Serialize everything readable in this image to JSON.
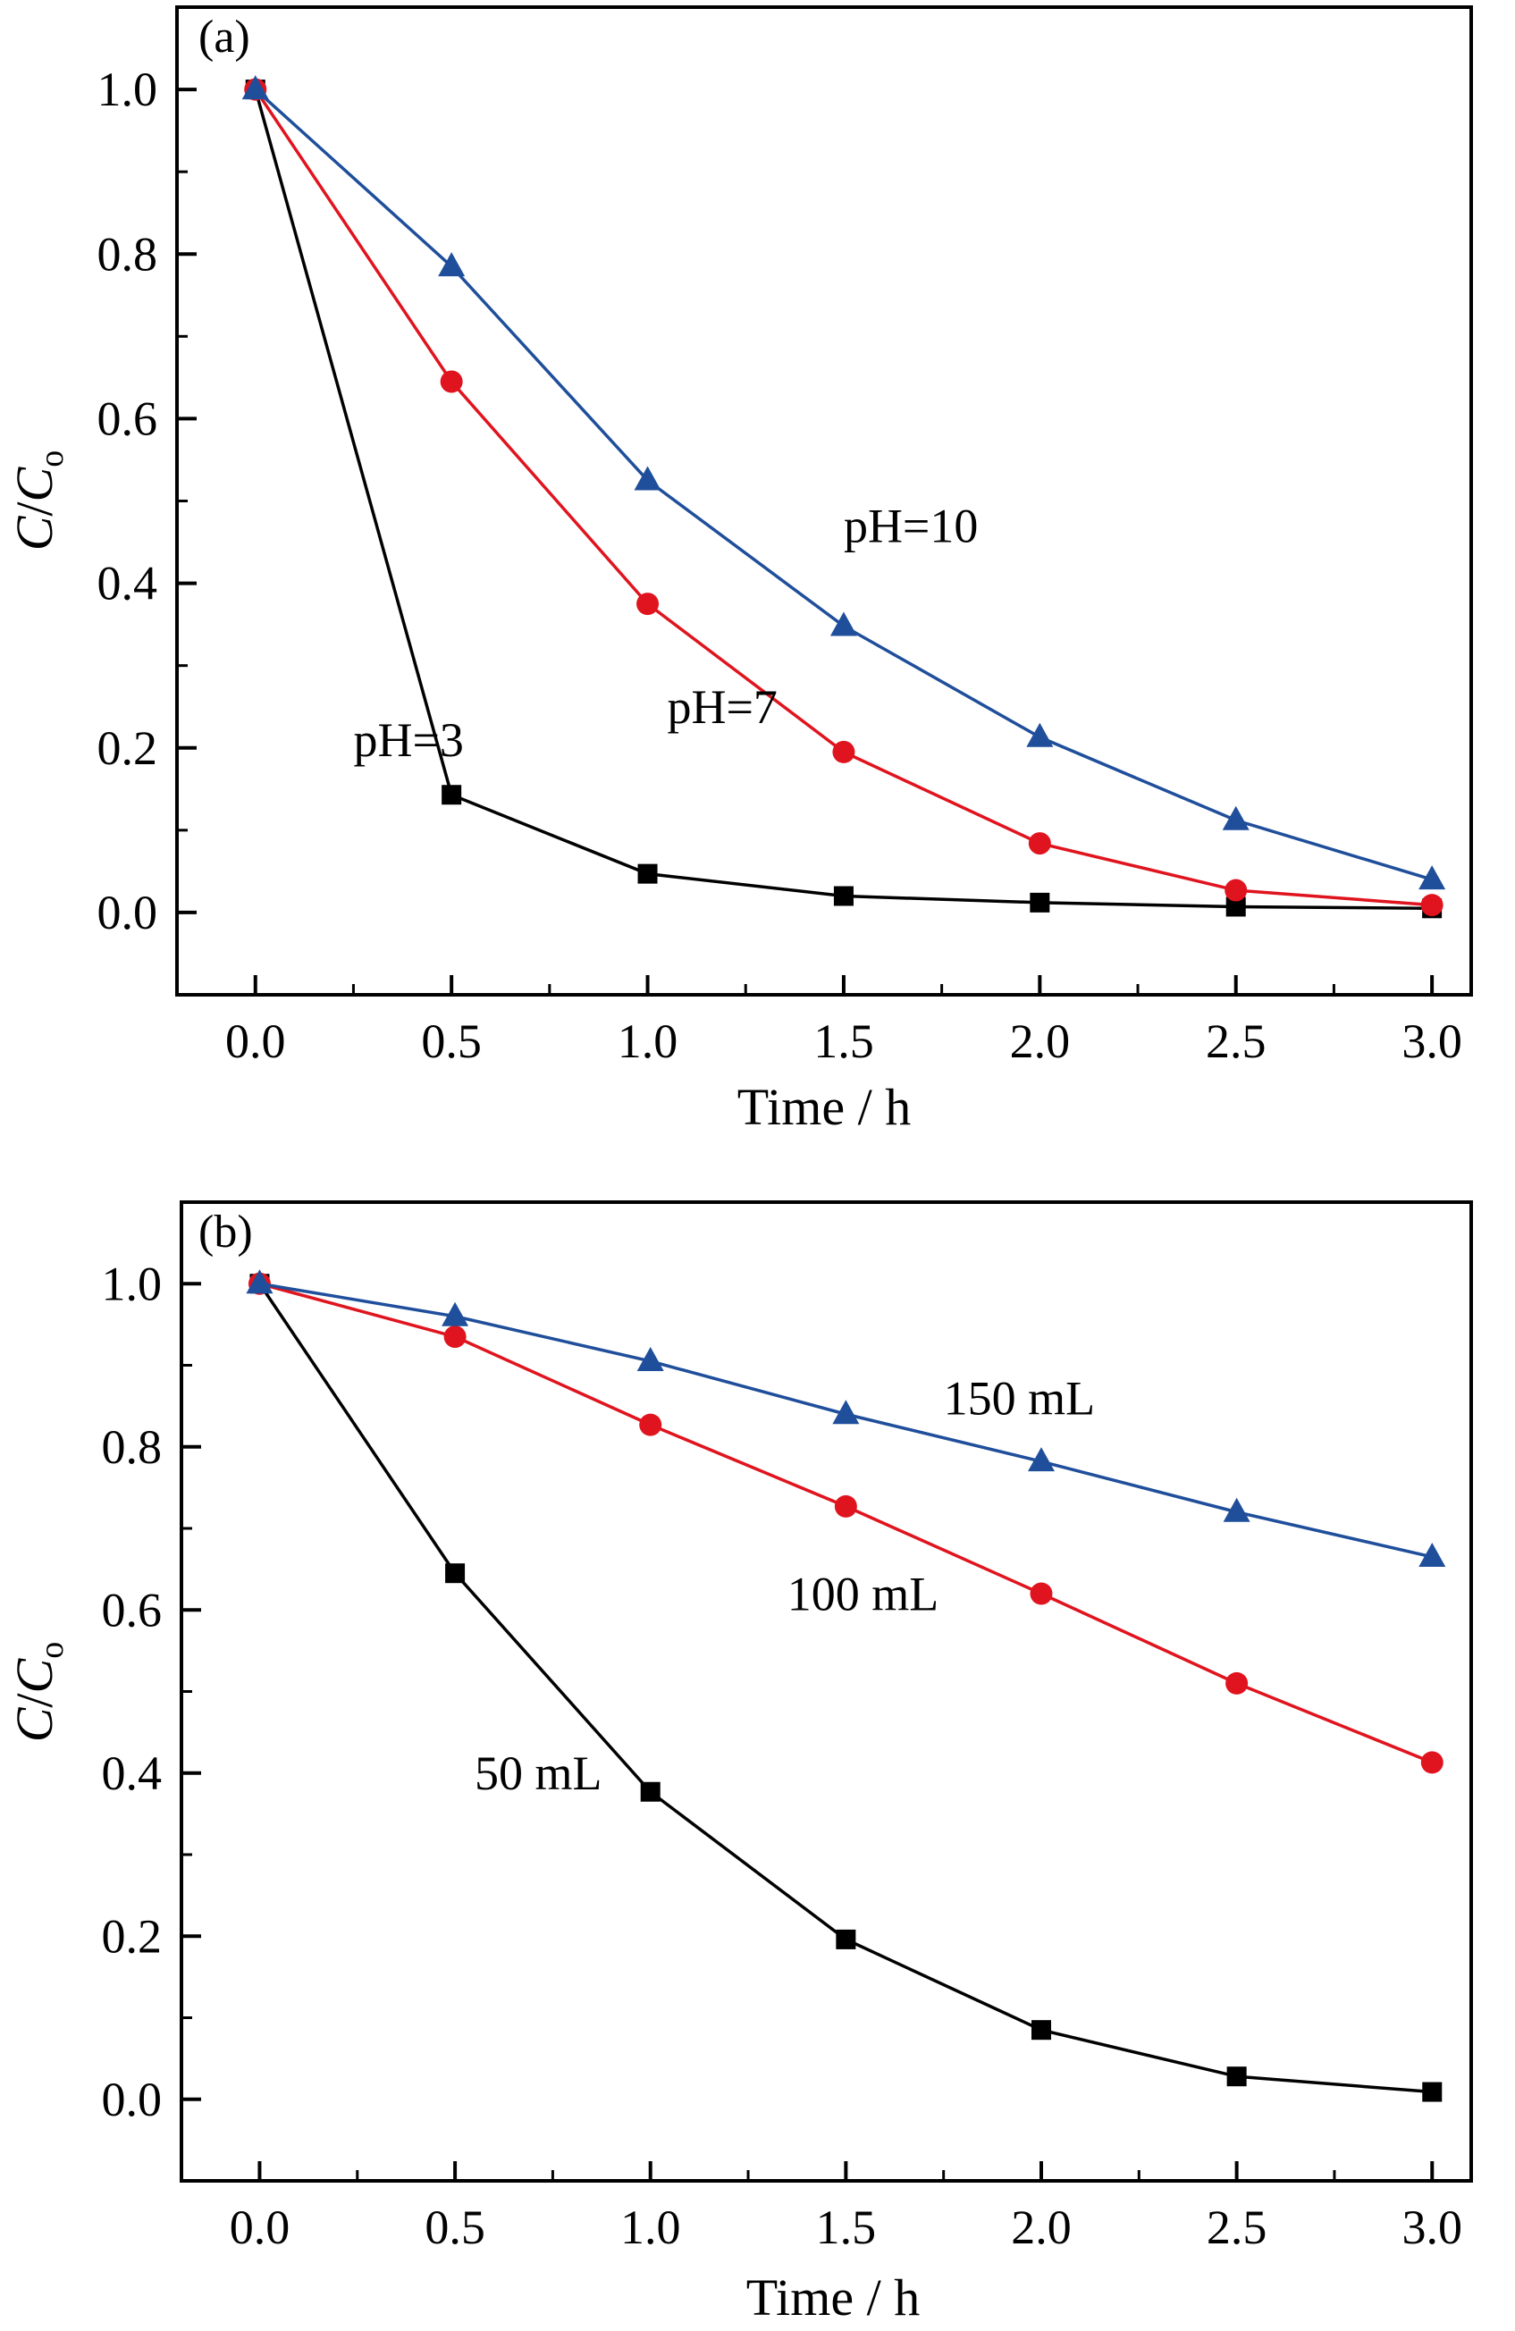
{
  "chart_data": [
    {
      "type": "line",
      "panel_label": "(a)",
      "xlabel": "Time / h",
      "ylabel": {
        "italic1": "C",
        "slash": "/",
        "italic2": "C",
        "sub": "o"
      },
      "xlim": [
        -0.2,
        3.1
      ],
      "ylim": [
        -0.1,
        1.1
      ],
      "xticks": [
        "0.0",
        "0.5",
        "1.0",
        "1.5",
        "2.0",
        "2.5",
        "3.0"
      ],
      "yticks": [
        "0.0",
        "0.2",
        "0.4",
        "0.6",
        "0.8",
        "1.0"
      ],
      "x": [
        0,
        0.5,
        1.0,
        1.5,
        2.0,
        2.5,
        3.0
      ],
      "series": [
        {
          "name": "pH=3",
          "color": "#000000",
          "marker": "square",
          "values": [
            1.0,
            0.143,
            0.047,
            0.02,
            0.012,
            0.007,
            0.005
          ]
        },
        {
          "name": "pH=7",
          "color": "#e0141e",
          "marker": "circle",
          "values": [
            1.0,
            0.645,
            0.375,
            0.195,
            0.084,
            0.027,
            0.009
          ]
        },
        {
          "name": "pH=10",
          "color": "#1f4e9b",
          "marker": "triangle",
          "values": [
            1.0,
            0.785,
            0.525,
            0.348,
            0.213,
            0.112,
            0.04
          ]
        }
      ],
      "annotations": [
        {
          "text": "pH=3",
          "x": 0.25,
          "y": 0.19
        },
        {
          "text": "pH=7",
          "x": 1.05,
          "y": 0.23
        },
        {
          "text": "pH=10",
          "x": 1.5,
          "y": 0.45
        }
      ]
    },
    {
      "type": "line",
      "panel_label": "(b)",
      "xlabel": "Time / h",
      "ylabel": {
        "italic1": "C",
        "slash": "/",
        "italic2": "C",
        "sub": "o"
      },
      "xlim": [
        -0.2,
        3.1
      ],
      "ylim": [
        -0.1,
        1.1
      ],
      "xticks": [
        "0.0",
        "0.5",
        "1.0",
        "1.5",
        "2.0",
        "2.5",
        "3.0"
      ],
      "yticks": [
        "0.0",
        "0.2",
        "0.4",
        "0.6",
        "0.8",
        "1.0"
      ],
      "x": [
        0,
        0.5,
        1.0,
        1.5,
        2.0,
        2.5,
        3.0
      ],
      "series": [
        {
          "name": "50 mL",
          "color": "#000000",
          "marker": "square",
          "values": [
            1.0,
            0.645,
            0.377,
            0.196,
            0.085,
            0.028,
            0.009
          ]
        },
        {
          "name": "100 mL",
          "color": "#e0141e",
          "marker": "circle",
          "values": [
            1.0,
            0.935,
            0.827,
            0.727,
            0.62,
            0.51,
            0.413
          ]
        },
        {
          "name": "150 mL",
          "color": "#1f4e9b",
          "marker": "triangle",
          "values": [
            1.0,
            0.96,
            0.905,
            0.84,
            0.782,
            0.72,
            0.665
          ]
        }
      ],
      "annotations": [
        {
          "text": "50 mL",
          "x": 0.55,
          "y": 0.38
        },
        {
          "text": "100 mL",
          "x": 1.35,
          "y": 0.6
        },
        {
          "text": "150 mL",
          "x": 1.75,
          "y": 0.84
        }
      ]
    }
  ]
}
